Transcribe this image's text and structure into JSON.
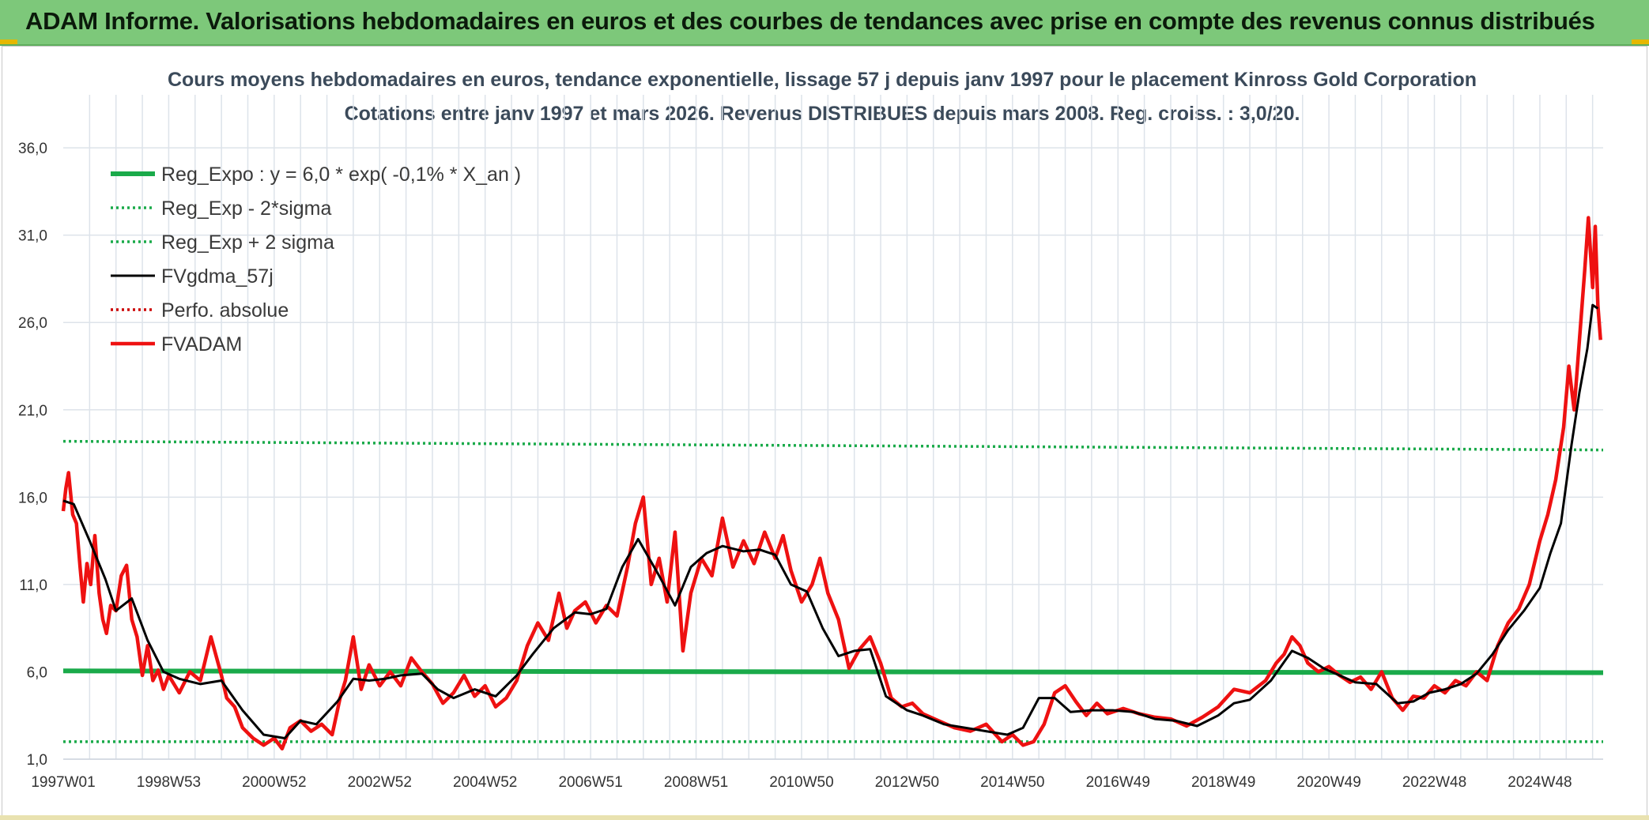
{
  "banner": {
    "title": "ADAM Informe. Valorisations hebdomadaires en euros et des courbes de tendances avec prise en compte des revenus connus distribués"
  },
  "chart_data": {
    "type": "line",
    "title": "Cours moyens hebdomadaires en euros, tendance exponentielle, lissage 57 j depuis janv 1997 pour le placement Kinross Gold Corporation",
    "subtitle": "Cotations entre janv 1997 et mars 2026. Revenus DISTRIBUES depuis mars 2008. Reg. croiss. : 3,0/20.",
    "xlabel": "",
    "ylabel": "",
    "x_range": [
      1997.0,
      2026.2
    ],
    "ylim": [
      1.0,
      37.0
    ],
    "y_ticks": [
      "1,0",
      "6,0",
      "11,0",
      "16,0",
      "21,0",
      "26,0",
      "31,0",
      "36,0"
    ],
    "y_tick_values": [
      1,
      6,
      11,
      16,
      21,
      26,
      31,
      36
    ],
    "x_ticks": [
      "1997W01",
      "1998W53",
      "2000W52",
      "2002W52",
      "2004W52",
      "2006W51",
      "2008W51",
      "2010W50",
      "2012W50",
      "2014W50",
      "2016W49",
      "2018W49",
      "2020W49",
      "2022W48",
      "2024W48"
    ],
    "x_tick_values": [
      1997.0,
      1999.0,
      2001.0,
      2003.0,
      2005.0,
      2007.0,
      2009.0,
      2011.0,
      2013.0,
      2015.0,
      2017.0,
      2019.0,
      2021.0,
      2023.0,
      2025.0
    ],
    "grid": true,
    "legend_position": "top-left",
    "colors": {
      "reg_expo": "#1aaa4a",
      "sigma_bands": "#1aaa4a",
      "fvgdma": "#000000",
      "perfo": "#cc0000",
      "fvadam": "#ee1111",
      "grid": "#dde3ea"
    },
    "series": [
      {
        "name": "Reg_Expo : y = 6,0 * exp( -0,1% *  X_an )",
        "style": "solid-thick",
        "x": [
          1997.0,
          2026.2
        ],
        "y": [
          6.05,
          5.95
        ]
      },
      {
        "name": "Reg_Exp - 2*sigma",
        "style": "dotted",
        "x": [
          1997.0,
          2026.2
        ],
        "y": [
          2.0,
          2.0
        ]
      },
      {
        "name": "Reg_Exp + 2 sigma",
        "style": "dotted",
        "x": [
          1997.0,
          2026.2
        ],
        "y": [
          19.2,
          18.7
        ]
      },
      {
        "name": "FVgdma_57j",
        "style": "solid",
        "x": [
          1997.0,
          1997.2,
          1997.5,
          1997.8,
          1998.0,
          1998.3,
          1998.6,
          1998.9,
          1999.2,
          1999.6,
          2000.0,
          2000.4,
          2000.8,
          2001.2,
          2001.5,
          2001.8,
          2002.2,
          2002.5,
          2002.8,
          2003.1,
          2003.4,
          2003.8,
          2004.1,
          2004.4,
          2004.8,
          2005.2,
          2005.6,
          2005.9,
          2006.3,
          2006.7,
          2007.0,
          2007.3,
          2007.6,
          2007.9,
          2008.3,
          2008.6,
          2008.9,
          2009.2,
          2009.5,
          2009.9,
          2010.2,
          2010.5,
          2010.8,
          2011.1,
          2011.4,
          2011.7,
          2012.0,
          2012.3,
          2012.6,
          2013.0,
          2013.3,
          2013.7,
          2014.1,
          2014.5,
          2014.9,
          2015.2,
          2015.5,
          2015.8,
          2016.1,
          2016.5,
          2016.9,
          2017.3,
          2017.7,
          2018.1,
          2018.5,
          2018.9,
          2019.2,
          2019.5,
          2019.9,
          2020.3,
          2020.6,
          2020.9,
          2021.2,
          2021.5,
          2021.9,
          2022.3,
          2022.6,
          2022.9,
          2023.2,
          2023.5,
          2023.8,
          2024.1,
          2024.4,
          2024.7,
          2025.0,
          2025.2,
          2025.4,
          2025.6,
          2025.75,
          2025.9,
          2026.0,
          2026.1
        ],
        "y": [
          15.8,
          15.6,
          13.5,
          11.3,
          9.5,
          10.2,
          7.8,
          6.0,
          5.6,
          5.3,
          5.5,
          3.8,
          2.4,
          2.2,
          3.2,
          3.0,
          4.3,
          5.6,
          5.5,
          5.6,
          5.8,
          5.9,
          5.0,
          4.5,
          5.0,
          4.6,
          5.8,
          7.0,
          8.5,
          9.4,
          9.3,
          9.6,
          12.0,
          13.6,
          11.5,
          9.8,
          12.0,
          12.8,
          13.2,
          12.9,
          13.0,
          12.7,
          11.0,
          10.6,
          8.5,
          6.9,
          7.2,
          7.3,
          4.6,
          3.8,
          3.5,
          3.0,
          2.8,
          2.6,
          2.4,
          2.8,
          4.5,
          4.5,
          3.7,
          3.8,
          3.8,
          3.7,
          3.3,
          3.2,
          2.9,
          3.5,
          4.2,
          4.4,
          5.5,
          7.2,
          6.8,
          6.2,
          5.8,
          5.4,
          5.3,
          4.2,
          4.3,
          4.8,
          5.0,
          5.3,
          5.9,
          7.0,
          8.4,
          9.5,
          10.8,
          12.8,
          14.5,
          19.0,
          22.0,
          24.5,
          27.0,
          26.8
        ]
      },
      {
        "name": "Perfo. absolue",
        "style": "dotted",
        "x": [],
        "y": []
      },
      {
        "name": "FVADAM",
        "style": "solid-thick",
        "x": [
          1997.0,
          1997.05,
          1997.1,
          1997.18,
          1997.25,
          1997.32,
          1997.38,
          1997.45,
          1997.52,
          1997.6,
          1997.68,
          1997.75,
          1997.82,
          1997.9,
          1998.0,
          1998.1,
          1998.2,
          1998.3,
          1998.4,
          1998.5,
          1998.6,
          1998.7,
          1998.8,
          1998.9,
          1999.0,
          1999.2,
          1999.4,
          1999.6,
          1999.8,
          2000.0,
          2000.1,
          2000.25,
          2000.4,
          2000.6,
          2000.8,
          2001.0,
          2001.15,
          2001.3,
          2001.5,
          2001.7,
          2001.9,
          2002.1,
          2002.25,
          2002.35,
          2002.5,
          2002.65,
          2002.8,
          2003.0,
          2003.2,
          2003.4,
          2003.6,
          2003.8,
          2004.0,
          2004.2,
          2004.4,
          2004.6,
          2004.8,
          2005.0,
          2005.2,
          2005.4,
          2005.6,
          2005.8,
          2006.0,
          2006.2,
          2006.4,
          2006.55,
          2006.7,
          2006.9,
          2007.1,
          2007.3,
          2007.5,
          2007.7,
          2007.85,
          2008.0,
          2008.15,
          2008.3,
          2008.45,
          2008.6,
          2008.75,
          2008.9,
          2009.1,
          2009.3,
          2009.5,
          2009.7,
          2009.9,
          2010.1,
          2010.3,
          2010.5,
          2010.65,
          2010.8,
          2011.0,
          2011.2,
          2011.35,
          2011.5,
          2011.7,
          2011.9,
          2012.1,
          2012.3,
          2012.5,
          2012.7,
          2012.9,
          2013.1,
          2013.3,
          2013.6,
          2013.9,
          2014.2,
          2014.5,
          2014.8,
          2015.0,
          2015.2,
          2015.4,
          2015.6,
          2015.8,
          2016.0,
          2016.2,
          2016.4,
          2016.6,
          2016.8,
          2017.1,
          2017.4,
          2017.7,
          2018.0,
          2018.3,
          2018.6,
          2018.9,
          2019.2,
          2019.5,
          2019.8,
          2020.0,
          2020.15,
          2020.3,
          2020.45,
          2020.6,
          2020.8,
          2021.0,
          2021.2,
          2021.4,
          2021.6,
          2021.8,
          2022.0,
          2022.2,
          2022.4,
          2022.6,
          2022.8,
          2023.0,
          2023.2,
          2023.4,
          2023.6,
          2023.8,
          2024.0,
          2024.2,
          2024.4,
          2024.6,
          2024.8,
          2025.0,
          2025.15,
          2025.3,
          2025.45,
          2025.55,
          2025.65,
          2025.75,
          2025.85,
          2025.92,
          2026.0,
          2026.05,
          2026.1,
          2026.15
        ],
        "y": [
          15.2,
          16.5,
          17.4,
          15.0,
          14.5,
          12.0,
          10.0,
          12.2,
          11.0,
          13.8,
          10.5,
          9.0,
          8.2,
          9.8,
          9.5,
          11.5,
          12.1,
          9.0,
          8.0,
          5.8,
          7.5,
          5.5,
          6.1,
          5.0,
          5.8,
          4.8,
          6.0,
          5.5,
          8.0,
          5.8,
          4.5,
          4.0,
          2.8,
          2.2,
          1.8,
          2.2,
          1.6,
          2.8,
          3.2,
          2.6,
          3.0,
          2.4,
          4.5,
          5.5,
          8.0,
          5.0,
          6.4,
          5.2,
          6.0,
          5.2,
          6.8,
          6.0,
          5.3,
          4.2,
          4.8,
          5.8,
          4.6,
          5.2,
          4.0,
          4.5,
          5.5,
          7.5,
          8.8,
          7.8,
          10.5,
          8.5,
          9.5,
          10.0,
          8.8,
          9.8,
          9.2,
          12.0,
          14.5,
          16.0,
          11.0,
          12.5,
          10.0,
          14.0,
          7.2,
          10.5,
          12.5,
          11.5,
          14.8,
          12.0,
          13.5,
          12.2,
          14.0,
          12.5,
          13.8,
          11.8,
          10.0,
          11.0,
          12.5,
          10.5,
          9.0,
          6.2,
          7.3,
          8.0,
          6.5,
          4.5,
          4.0,
          4.2,
          3.6,
          3.2,
          2.8,
          2.6,
          3.0,
          2.0,
          2.4,
          1.8,
          2.0,
          3.0,
          4.8,
          5.2,
          4.3,
          3.5,
          4.2,
          3.6,
          3.9,
          3.6,
          3.4,
          3.3,
          2.9,
          3.4,
          4.0,
          5.0,
          4.8,
          5.5,
          6.5,
          7.0,
          8.0,
          7.5,
          6.5,
          6.0,
          6.3,
          5.8,
          5.4,
          5.7,
          5.0,
          6.0,
          4.5,
          3.8,
          4.6,
          4.5,
          5.2,
          4.8,
          5.5,
          5.2,
          6.0,
          5.5,
          7.5,
          8.8,
          9.6,
          11.0,
          13.5,
          15.0,
          17.0,
          20.0,
          23.5,
          21.0,
          25.0,
          29.0,
          32.0,
          28.0,
          31.5,
          27.0,
          25.0
        ]
      }
    ]
  }
}
